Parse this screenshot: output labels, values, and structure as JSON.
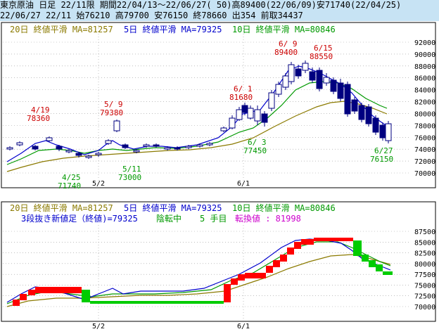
{
  "header": {
    "line1": "東京原油 日足 22/11限 期間22/04/13～22/06/27( 50)高89400(22/06/09)安71740(22/04/25)",
    "line2": "22/06/27 22/11 始76210 高79700 安76150 終78660 出354 前取34437"
  },
  "top_chart": {
    "legend": {
      "ma20": "20日 終値平滑 MA=81257",
      "ma5": "5日 終値平滑 MA=79325",
      "ma10": "10日 終値平滑 MA=80846"
    },
    "y_ticks": [
      "92000",
      "90000",
      "88000",
      "86000",
      "84000",
      "82000",
      "80000",
      "78000",
      "76000",
      "74000",
      "72000",
      "70000"
    ],
    "x_ticks": [
      "5/2",
      "6/1"
    ],
    "annotations": [
      {
        "date": "4/19",
        "price": "78360",
        "kind": "high"
      },
      {
        "date": "5/ 9",
        "price": "79380",
        "kind": "high"
      },
      {
        "date": "6/ 1",
        "price": "81680",
        "kind": "high"
      },
      {
        "date": "6/ 9",
        "price": "89400",
        "kind": "high"
      },
      {
        "date": "6/15",
        "price": "88550",
        "kind": "high"
      },
      {
        "date": "4/25",
        "price": "71740",
        "kind": "low"
      },
      {
        "date": "5/11",
        "price": "73000",
        "kind": "low"
      },
      {
        "date": "6/ 3",
        "price": "77450",
        "kind": "low"
      },
      {
        "date": "6/27",
        "price": "76150",
        "kind": "low"
      }
    ]
  },
  "bottom_chart": {
    "legend": {
      "ma20": "20日 終値平滑 MA=81257",
      "ma5": "5日 終値平滑 MA=79325",
      "ma10": "10日 終値平滑 MA=80846"
    },
    "info": {
      "prefix": "3段抜き新値足（終値)=79325",
      "status": "陰転中",
      "count": "5 手目",
      "reversal": "転換値 : 81998"
    },
    "y_ticks": [
      "87500",
      "85000",
      "82500",
      "80000",
      "77500",
      "75000",
      "72500",
      "70000"
    ],
    "x_ticks": [
      "5/2",
      "6/1"
    ]
  },
  "colors": {
    "up": "#ff0000",
    "down": "#00cc00",
    "ma5": "#0000cc",
    "ma10": "#009900",
    "ma20": "#8b7a00",
    "candle_down": "#000080",
    "label_high": "#cc0000",
    "label_low": "#009900"
  }
}
